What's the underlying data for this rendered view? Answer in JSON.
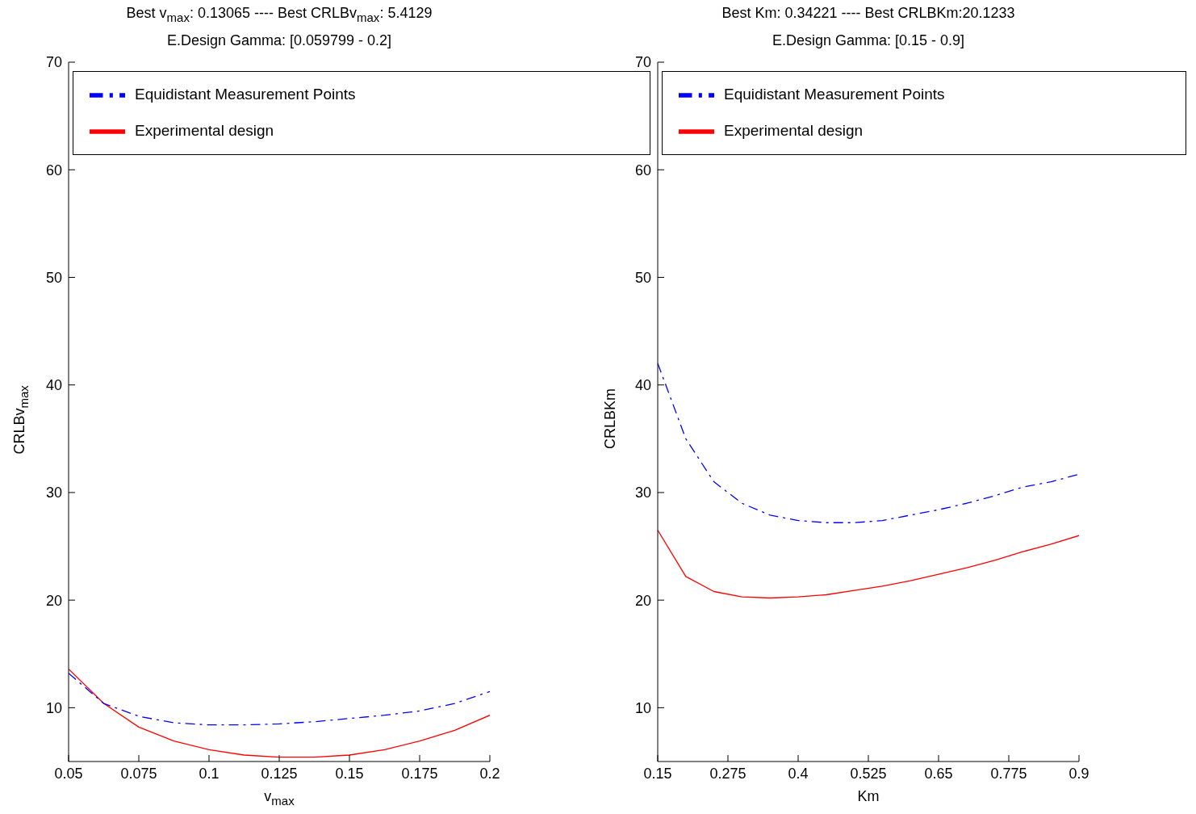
{
  "chart_data": [
    {
      "type": "line",
      "title": "Best v$_{max}$: 0.13065 ---- Best CRLBv$_{max}$: 5.4129",
      "subtitle": "E.Design Gamma: [0.059799 - 0.2]",
      "xlabel": "v$_{max}$",
      "ylabel": "CRLBv$_{max}$",
      "xlim": [
        0.05,
        0.2
      ],
      "xticks": [
        0.05,
        0.075,
        0.1,
        0.125,
        0.15,
        0.175,
        0.2
      ],
      "ylim": [
        5,
        70
      ],
      "yticks": [
        10,
        20,
        30,
        40,
        50,
        60,
        70
      ],
      "grid": false,
      "legend": "top",
      "marker": "none",
      "series": [
        {
          "name": "Experimental design",
          "color": "#ff0000",
          "line_style": "solid",
          "x": [
            0.05,
            0.0625,
            0.075,
            0.0875,
            0.1,
            0.1125,
            0.125,
            0.1375,
            0.15,
            0.1625,
            0.175,
            0.1875,
            0.2
          ],
          "values": [
            13.6,
            10.4,
            8.2,
            6.9,
            6.1,
            5.6,
            5.4,
            5.4,
            5.6,
            6.1,
            6.9,
            7.9,
            9.3
          ]
        },
        {
          "name": "Equidistant Measurement Points",
          "color": "#0000ff",
          "line_style": "dashed",
          "x": [
            0.05,
            0.0625,
            0.075,
            0.0875,
            0.1,
            0.1125,
            0.125,
            0.1375,
            0.15,
            0.1625,
            0.175,
            0.1875,
            0.2
          ],
          "values": [
            13.2,
            10.4,
            9.2,
            8.6,
            8.4,
            8.4,
            8.5,
            8.7,
            9.0,
            9.3,
            9.7,
            10.4,
            11.5
          ]
        }
      ]
    },
    {
      "type": "line",
      "title": "Best Km: 0.34221 ---- Best CRLBKm:20.1233",
      "subtitle": "E.Design Gamma: [0.15 - 0.9]",
      "xlabel": "Km",
      "ylabel": "CRLBKm",
      "xlim": [
        0.15,
        0.9
      ],
      "xticks": [
        0.15,
        0.275,
        0.4,
        0.525,
        0.65,
        0.775,
        0.9
      ],
      "ylim": [
        5,
        70
      ],
      "yticks": [
        10,
        20,
        30,
        40,
        50,
        60,
        70
      ],
      "grid": false,
      "legend": "top",
      "marker": "none",
      "series": [
        {
          "name": "Experimental design",
          "color": "#ff0000",
          "line_style": "solid",
          "x": [
            0.15,
            0.2,
            0.25,
            0.3,
            0.35,
            0.4,
            0.45,
            0.5,
            0.55,
            0.6,
            0.65,
            0.7,
            0.75,
            0.8,
            0.85,
            0.9
          ],
          "values": [
            26.5,
            22.2,
            20.8,
            20.3,
            20.2,
            20.3,
            20.5,
            20.9,
            21.3,
            21.8,
            22.4,
            23.0,
            23.7,
            24.5,
            25.2,
            26.0
          ]
        },
        {
          "name": "Equidistant Measurement Points",
          "color": "#0000ff",
          "line_style": "dashed",
          "x": [
            0.15,
            0.2,
            0.25,
            0.3,
            0.35,
            0.4,
            0.45,
            0.5,
            0.55,
            0.6,
            0.65,
            0.7,
            0.75,
            0.8,
            0.85,
            0.9
          ],
          "values": [
            42.0,
            35.0,
            31.0,
            29.0,
            27.9,
            27.4,
            27.2,
            27.2,
            27.4,
            27.9,
            28.4,
            29.0,
            29.7,
            30.5,
            31.0,
            31.7
          ]
        }
      ]
    }
  ]
}
